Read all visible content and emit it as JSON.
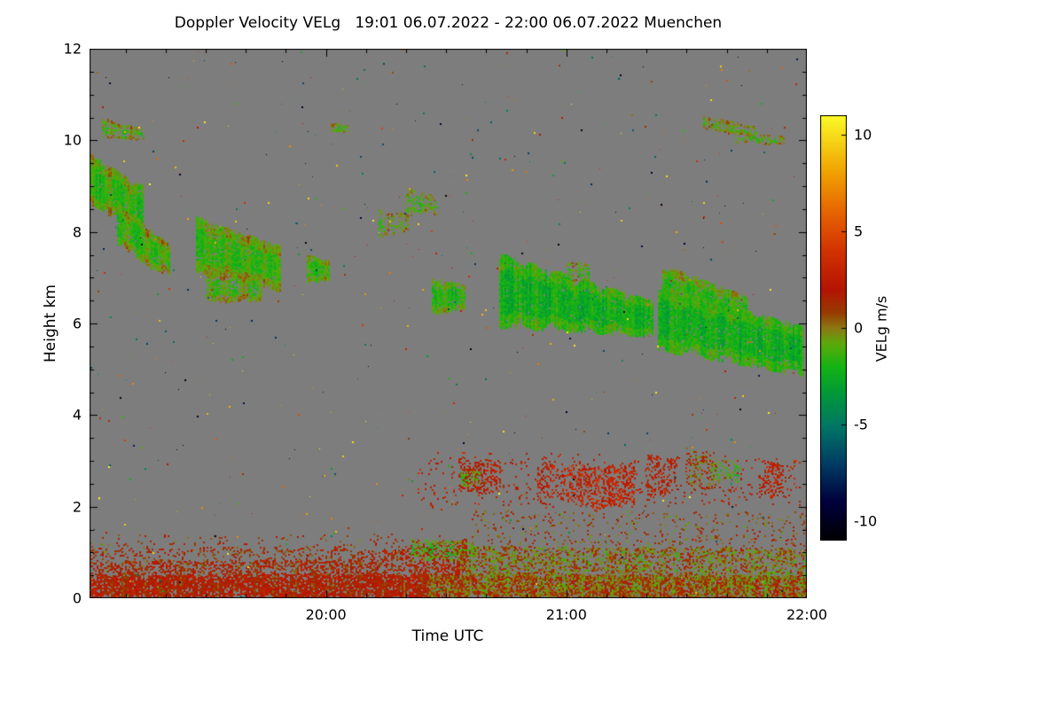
{
  "figure": {
    "title": "Doppler Velocity VELg   19:01 06.07.2022 - 22:00 06.07.2022 Muenchen",
    "xlabel": "Time UTC",
    "ylabel": "Height km",
    "colorbar_label": "VELg m/s",
    "time_start_label": "19:01 06.07.2022",
    "time_end_label": "22:00 06.07.2022",
    "site": "Muenchen"
  },
  "chart_data": {
    "type": "heatmap",
    "title": "Doppler Velocity VELg   19:01 06.07.2022 - 22:00 06.07.2022 Muenchen",
    "xlabel": "Time UTC",
    "ylabel": "Height km",
    "x_range_hours": [
      19.0167,
      22.0
    ],
    "x_ticks": [
      {
        "t": 20.0,
        "label": "20:00"
      },
      {
        "t": 21.0,
        "label": "21:00"
      },
      {
        "t": 22.0,
        "label": "22:00"
      }
    ],
    "x_minor_step_hours": 0.166667,
    "y_range_km": [
      0,
      12
    ],
    "y_ticks": [
      0,
      2,
      4,
      6,
      8,
      10,
      12
    ],
    "y_minor_step_km": 0.5,
    "background_color": "#7d7d7d",
    "colorbar": {
      "label": "VELg m/s",
      "range": [
        -11,
        11
      ],
      "ticks": [
        10,
        5,
        0,
        -5,
        -10
      ]
    },
    "colormap": [
      {
        "v": -11,
        "c": "#000000"
      },
      {
        "v": -9,
        "c": "#00003c"
      },
      {
        "v": -7,
        "c": "#003c64"
      },
      {
        "v": -5,
        "c": "#007864"
      },
      {
        "v": -3.5,
        "c": "#00963c"
      },
      {
        "v": -2,
        "c": "#14b414"
      },
      {
        "v": -0.8,
        "c": "#5aaa0a"
      },
      {
        "v": 0,
        "c": "#8c7814"
      },
      {
        "v": 0.8,
        "c": "#963c00"
      },
      {
        "v": 2,
        "c": "#b41400"
      },
      {
        "v": 4,
        "c": "#d23200"
      },
      {
        "v": 6,
        "c": "#e66400"
      },
      {
        "v": 8,
        "c": "#f0a000"
      },
      {
        "v": 11,
        "c": "#fafa28"
      }
    ],
    "features": [
      {
        "name": "cirrus-streak-1",
        "t": [
          19.07,
          19.24
        ],
        "h0": [
          10.05,
          10.5
        ],
        "h1": [
          10.0,
          10.25
        ],
        "v": -1.0,
        "jitter": 0.8,
        "density": 0.6
      },
      {
        "name": "cloud-A-upper",
        "t": [
          19.02,
          19.24
        ],
        "h0": [
          8.6,
          9.7
        ],
        "h1": [
          7.9,
          9.0
        ],
        "v": -1.6,
        "jitter": 0.9,
        "density": 0.96
      },
      {
        "name": "cloud-A-lower",
        "t": [
          19.13,
          19.35
        ],
        "h0": [
          7.7,
          8.7
        ],
        "h1": [
          6.95,
          7.7
        ],
        "v": -1.4,
        "jitter": 0.9,
        "density": 0.92
      },
      {
        "name": "cloud-B-main",
        "t": [
          19.46,
          19.81
        ],
        "h0": [
          7.1,
          8.35
        ],
        "h1": [
          6.7,
          7.7
        ],
        "v": -1.5,
        "jitter": 1.0,
        "density": 0.95
      },
      {
        "name": "cloud-B-lower",
        "t": [
          19.5,
          19.73
        ],
        "h0": [
          6.45,
          7.15
        ],
        "h1": [
          6.5,
          7.1
        ],
        "v": -1.2,
        "jitter": 0.8,
        "density": 0.8
      },
      {
        "name": "blob-C",
        "t": [
          19.92,
          20.01
        ],
        "h0": [
          6.9,
          7.5
        ],
        "h1": [
          6.95,
          7.4
        ],
        "v": -1.5,
        "jitter": 0.8,
        "density": 0.9
      },
      {
        "name": "streak-D",
        "t": [
          20.02,
          20.09
        ],
        "h0": [
          10.15,
          10.4
        ],
        "h1": [
          10.2,
          10.35
        ],
        "v": -1.0,
        "jitter": 0.6,
        "density": 0.6
      },
      {
        "name": "specks-E1",
        "t": [
          20.22,
          20.34
        ],
        "h0": [
          7.9,
          8.5
        ],
        "h1": [
          8.0,
          8.4
        ],
        "v": -1.0,
        "jitter": 0.8,
        "density": 0.45
      },
      {
        "name": "specks-E2",
        "t": [
          20.33,
          20.46
        ],
        "h0": [
          8.3,
          8.95
        ],
        "h1": [
          8.4,
          8.8
        ],
        "v": -1.1,
        "jitter": 0.8,
        "density": 0.5
      },
      {
        "name": "cloud-F",
        "t": [
          20.44,
          20.58
        ],
        "h0": [
          6.2,
          7.0
        ],
        "h1": [
          6.3,
          6.85
        ],
        "v": -1.8,
        "jitter": 0.8,
        "density": 0.9
      },
      {
        "name": "cloud-G-main",
        "t": [
          20.72,
          21.36
        ],
        "h0": [
          5.9,
          7.55
        ],
        "h1": [
          5.7,
          6.5
        ],
        "v": -2.4,
        "jitter": 1.1,
        "density": 0.97
      },
      {
        "name": "specks-G-top",
        "t": [
          21.0,
          21.09
        ],
        "h0": [
          6.9,
          7.4
        ],
        "h1": [
          6.9,
          7.3
        ],
        "v": -1.2,
        "jitter": 0.7,
        "density": 0.5
      },
      {
        "name": "cloud-H-upper",
        "t": [
          21.4,
          21.75
        ],
        "h0": [
          6.3,
          7.3
        ],
        "h1": [
          5.95,
          6.6
        ],
        "v": -1.6,
        "jitter": 0.9,
        "density": 0.9
      },
      {
        "name": "cloud-H-main",
        "t": [
          21.38,
          21.98
        ],
        "h0": [
          5.4,
          6.85
        ],
        "h1": [
          4.85,
          5.95
        ],
        "v": -2.3,
        "jitter": 1.0,
        "density": 0.96
      },
      {
        "name": "cirrus-streak-2",
        "t": [
          21.57,
          21.79
        ],
        "h0": [
          10.25,
          10.55
        ],
        "h1": [
          10.05,
          10.3
        ],
        "v": -1.0,
        "jitter": 0.7,
        "density": 0.55
      },
      {
        "name": "cirrus-streak-3",
        "t": [
          21.7,
          21.9
        ],
        "h0": [
          9.95,
          10.2
        ],
        "h1": [
          9.9,
          10.1
        ],
        "v": -1.1,
        "jitter": 0.7,
        "density": 0.5
      },
      {
        "name": "midlevel-speckle",
        "t": [
          20.38,
          21.97
        ],
        "h0": [
          1.95,
          3.2
        ],
        "h1": [
          2.0,
          3.1
        ],
        "v": 2.5,
        "jitter": 1.6,
        "density": 0.07
      },
      {
        "name": "midlevel-clump-1",
        "t": [
          20.55,
          20.72
        ],
        "h0": [
          2.3,
          3.1
        ],
        "h1": [
          2.3,
          3.0
        ],
        "v": 2.2,
        "jitter": 1.2,
        "density": 0.4
      },
      {
        "name": "midlevel-green-1",
        "t": [
          20.56,
          20.64
        ],
        "h0": [
          2.45,
          2.8
        ],
        "h1": [
          2.5,
          2.78
        ],
        "v": -1.4,
        "jitter": 0.6,
        "density": 0.5
      },
      {
        "name": "midlevel-clump-2",
        "t": [
          20.88,
          21.06
        ],
        "h0": [
          2.15,
          2.95
        ],
        "h1": [
          2.1,
          2.9
        ],
        "v": 2.8,
        "jitter": 1.3,
        "density": 0.35
      },
      {
        "name": "midlevel-clump-3",
        "t": [
          21.05,
          21.28
        ],
        "h0": [
          1.9,
          2.95
        ],
        "h1": [
          2.0,
          2.9
        ],
        "v": 3.0,
        "jitter": 1.4,
        "density": 0.45
      },
      {
        "name": "midlevel-clump-4",
        "t": [
          21.33,
          21.46
        ],
        "h0": [
          2.2,
          3.15
        ],
        "h1": [
          2.3,
          3.05
        ],
        "v": 2.4,
        "jitter": 1.4,
        "density": 0.35
      },
      {
        "name": "midlevel-mix-5",
        "t": [
          21.5,
          21.62
        ],
        "h0": [
          2.35,
          3.3
        ],
        "h1": [
          2.4,
          3.2
        ],
        "v": 0.8,
        "jitter": 2.2,
        "density": 0.35
      },
      {
        "name": "midlevel-green-2",
        "t": [
          21.6,
          21.72
        ],
        "h0": [
          2.5,
          3.05
        ],
        "h1": [
          2.55,
          3.0
        ],
        "v": -1.2,
        "jitter": 1.0,
        "density": 0.3
      },
      {
        "name": "midlevel-clump-6",
        "t": [
          21.8,
          21.9
        ],
        "h0": [
          2.2,
          3.0
        ],
        "h1": [
          2.25,
          2.95
        ],
        "v": 2.5,
        "jitter": 1.3,
        "density": 0.35
      },
      {
        "name": "bl-dense-left",
        "t": [
          19.0167,
          20.42
        ],
        "h0": [
          0.0,
          0.5
        ],
        "h1": [
          0.0,
          0.55
        ],
        "v": 1.8,
        "jitter": 1.4,
        "density": 0.85
      },
      {
        "name": "bl-dense-right",
        "t": [
          20.42,
          22.0
        ],
        "h0": [
          0.0,
          0.55
        ],
        "h1": [
          0.0,
          0.5
        ],
        "v": 0.6,
        "jitter": 2.0,
        "density": 0.85
      },
      {
        "name": "bl-mid-left",
        "t": [
          19.0167,
          20.12
        ],
        "h0": [
          0.45,
          0.8
        ],
        "h1": [
          0.5,
          0.85
        ],
        "v": 1.6,
        "jitter": 1.5,
        "density": 0.5
      },
      {
        "name": "bl-upper-left",
        "t": [
          19.0167,
          20.12
        ],
        "h0": [
          0.75,
          1.1
        ],
        "h1": [
          0.8,
          1.15
        ],
        "v": 1.4,
        "jitter": 1.6,
        "density": 0.2
      },
      {
        "name": "bl-hump",
        "t": [
          20.1,
          20.58
        ],
        "h0": [
          0.45,
          1.0
        ],
        "h1": [
          0.5,
          1.3
        ],
        "v": 1.8,
        "jitter": 1.4,
        "density": 0.5
      },
      {
        "name": "bl-hump-green-top",
        "t": [
          20.35,
          20.62
        ],
        "h0": [
          0.85,
          1.3
        ],
        "h1": [
          0.8,
          1.25
        ],
        "v": -1.4,
        "jitter": 0.9,
        "density": 0.45
      },
      {
        "name": "bl-mid-right",
        "t": [
          20.55,
          22.0
        ],
        "h0": [
          0.45,
          1.15
        ],
        "h1": [
          0.4,
          1.1
        ],
        "v": 0.2,
        "jitter": 2.0,
        "density": 0.5
      },
      {
        "name": "bl-sparse-top-right",
        "t": [
          20.6,
          22.0
        ],
        "h0": [
          1.05,
          1.95
        ],
        "h1": [
          1.0,
          1.9
        ],
        "v": 0.8,
        "jitter": 2.0,
        "density": 0.1
      },
      {
        "name": "bl-sparse-top-left",
        "t": [
          19.0167,
          20.6
        ],
        "h0": [
          0.95,
          1.45
        ],
        "h1": [
          1.0,
          1.4
        ],
        "v": 1.2,
        "jitter": 1.6,
        "density": 0.07
      }
    ],
    "noise_dots": {
      "count": 650,
      "v_range": [
        -11,
        11
      ]
    }
  }
}
